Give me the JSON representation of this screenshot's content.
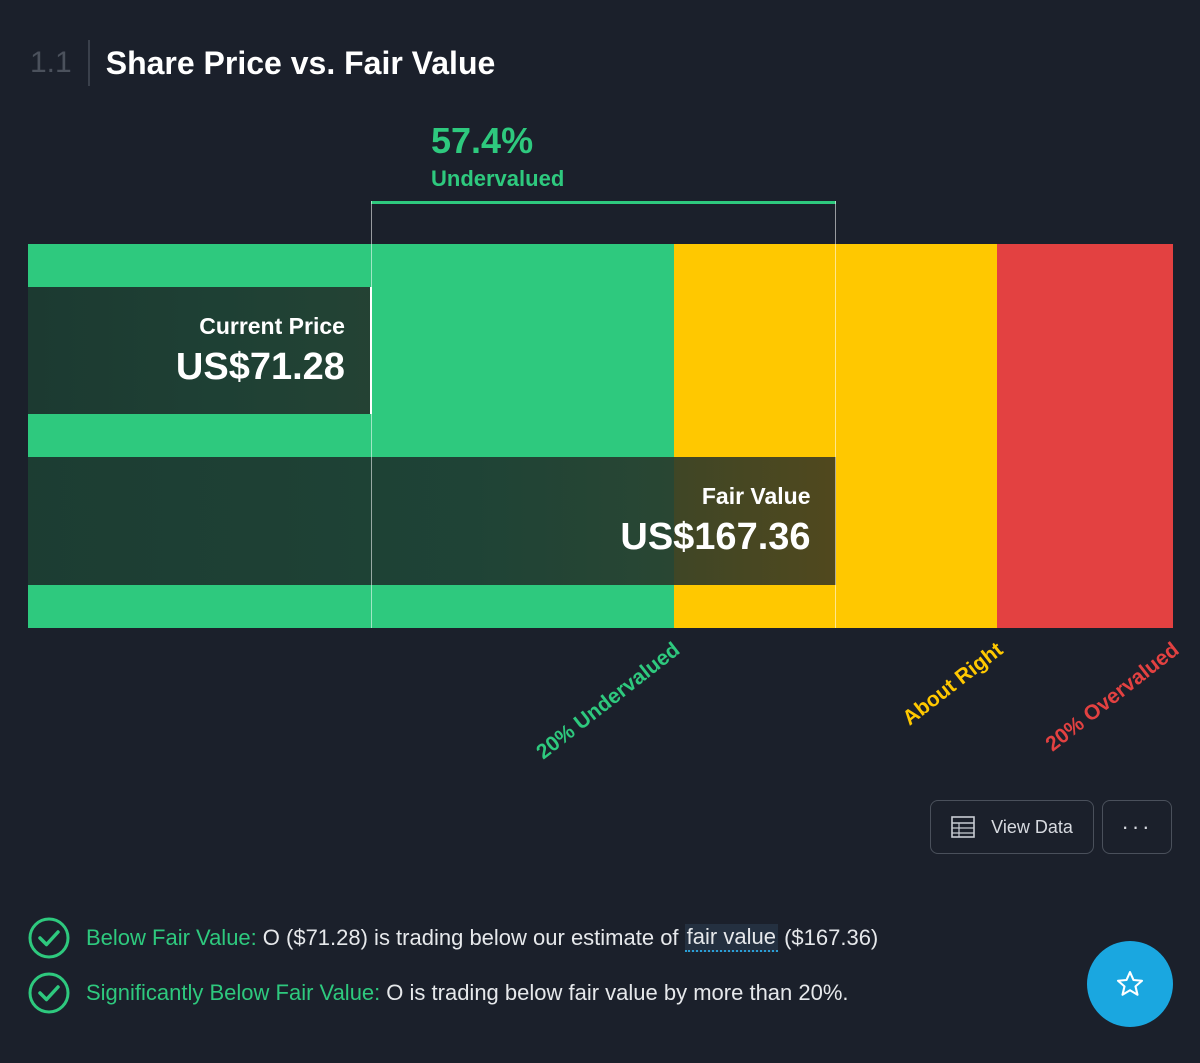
{
  "header": {
    "section_number": "1.1",
    "title": "Share Price vs. Fair Value"
  },
  "chart_data": {
    "type": "bar",
    "title": "Share Price vs. Fair Value",
    "currency": "US$",
    "categories": [
      "Current Price",
      "Fair Value"
    ],
    "values": [
      71.28,
      167.36
    ],
    "value_labels": [
      "US$71.28",
      "US$167.36"
    ],
    "discount_percent": 57.4,
    "discount_text": "57.4%",
    "discount_label": "Undervalued",
    "x_max": 237.3,
    "zones": [
      {
        "label": "20% Undervalued",
        "from": 0,
        "to": 133.89,
        "color": "#2ec97e"
      },
      {
        "label": "About Right",
        "from": 133.89,
        "to": 200.83,
        "color": "#ffc800"
      },
      {
        "label": "20% Overvalued",
        "from": 200.83,
        "to": 237.3,
        "color": "#e34141"
      }
    ]
  },
  "buttons": {
    "view_data": "View Data",
    "more": "···"
  },
  "checks": [
    {
      "title": "Below Fair Value:",
      "text_before": "O ($71.28) is trading below our estimate of",
      "link": "fair value",
      "text_after": "($167.36)"
    },
    {
      "title": "Significantly Below Fair Value:",
      "text_before": "O is trading below fair value by more than 20%.",
      "link": "",
      "text_after": ""
    }
  ],
  "icons": {
    "table": "table-icon",
    "check": "check-circle-icon",
    "star": "star-icon",
    "more": "ellipsis-icon"
  },
  "colors": {
    "background": "#1b202b",
    "green": "#2ec97e",
    "yellow": "#ffc800",
    "red": "#e34141",
    "fab": "#1aa7e0"
  }
}
